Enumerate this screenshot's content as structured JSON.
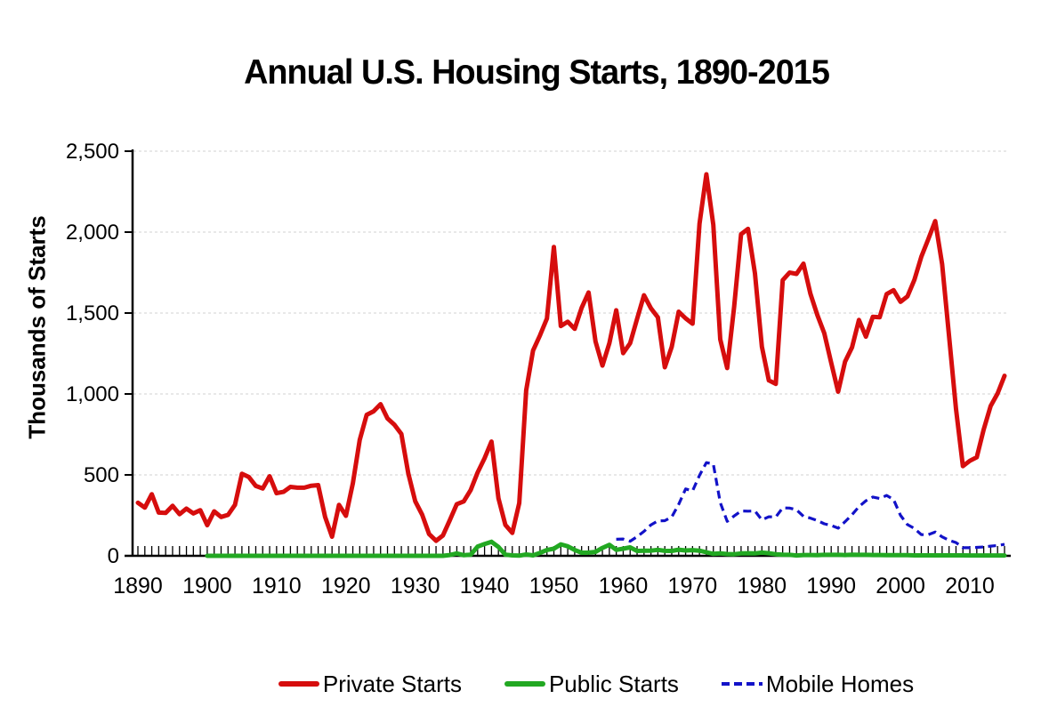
{
  "title": "Annual U.S. Housing Starts, 1890-2015",
  "y_axis": {
    "label": "Thousands of Starts",
    "ticks": [
      "0",
      "500",
      "1,000",
      "1,500",
      "2,000",
      "2,500"
    ],
    "min": 0,
    "max": 2500,
    "step": 500
  },
  "x_axis": {
    "tick_labels": [
      "1890",
      "1900",
      "1910",
      "1920",
      "1930",
      "1940",
      "1950",
      "1960",
      "1970",
      "1980",
      "1990",
      "2000",
      "2010"
    ],
    "min": 1890,
    "max": 2015,
    "minor_tick_step": 1,
    "label_step": 10
  },
  "legend": [
    {
      "label": "Private Starts",
      "color": "#D60D0D",
      "style": "solid"
    },
    {
      "label": "Public Starts",
      "color": "#22A822",
      "style": "solid"
    },
    {
      "label": "Mobile Homes",
      "color": "#1212C8",
      "style": "dashed"
    }
  ],
  "chart_data": {
    "type": "line",
    "title": "Annual U.S. Housing Starts, 1890-2015",
    "xlabel": "",
    "ylabel": "Thousands of Starts",
    "ylim": [
      0,
      2500
    ],
    "xlim": [
      1890,
      2015
    ],
    "grid": "horizontal-dashed",
    "legend_position": "bottom",
    "series": [
      {
        "name": "Private Starts",
        "color": "#D60D0D",
        "dash": "solid",
        "start_year": 1890,
        "values": [
          328,
          298,
          381,
          267,
          265,
          309,
          257,
          292,
          262,
          282,
          189,
          275,
          240,
          253,
          315,
          507,
          487,
          432,
          416,
          492,
          387,
          395,
          426,
          421,
          421,
          433,
          437,
          240,
          118,
          315,
          247,
          449,
          716,
          871,
          893,
          937,
          849,
          810,
          753,
          509,
          337,
          254,
          134,
          93,
          126,
          221,
          319,
          336,
          406,
          515,
          603,
          706,
          356,
          191,
          142,
          326,
          1023,
          1268,
          1362,
          1466,
          1908,
          1420,
          1446,
          1402,
          1532,
          1627,
          1325,
          1175,
          1314,
          1517,
          1252,
          1313,
          1463,
          1610,
          1529,
          1473,
          1165,
          1292,
          1508,
          1467,
          1434,
          2052,
          2357,
          2045,
          1338,
          1160,
          1538,
          1987,
          2020,
          1745,
          1292,
          1084,
          1062,
          1703,
          1750,
          1742,
          1805,
          1620,
          1488,
          1376,
          1193,
          1014,
          1200,
          1288,
          1457,
          1354,
          1477,
          1474,
          1617,
          1641,
          1569,
          1603,
          1705,
          1848,
          1956,
          2068,
          1801,
          1355,
          906,
          554,
          587,
          609,
          781,
          925,
          1003,
          1112
        ]
      },
      {
        "name": "Public Starts",
        "color": "#22A822",
        "dash": "solid",
        "start_year": 1900,
        "values": [
          0,
          0,
          0,
          0,
          0,
          0,
          0,
          0,
          0,
          0,
          0,
          0,
          0,
          0,
          0,
          0,
          0,
          0,
          0,
          0,
          0,
          0,
          0,
          0,
          0,
          0,
          0,
          0,
          0,
          0,
          0,
          0,
          0,
          0,
          0,
          5,
          15,
          4,
          7,
          57,
          73,
          87,
          55,
          7,
          3,
          1,
          8,
          3,
          18,
          36,
          44,
          71,
          59,
          36,
          19,
          20,
          24,
          49,
          68,
          37,
          44,
          52,
          30,
          32,
          32,
          37,
          31,
          30,
          38,
          33,
          35,
          32,
          22,
          12,
          15,
          11,
          10,
          15,
          16,
          15,
          20,
          16,
          10,
          7,
          6,
          2,
          5,
          5,
          4,
          6,
          6,
          6,
          5,
          7,
          6,
          6,
          5,
          5,
          4,
          4,
          4,
          4,
          3,
          3,
          3,
          3,
          3,
          3,
          3,
          3,
          2,
          2,
          2,
          2,
          2,
          2
        ]
      },
      {
        "name": "Mobile Homes",
        "color": "#1212C8",
        "dash": "dashed",
        "start_year": 1959,
        "values": [
          102,
          104,
          90,
          118,
          151,
          191,
          216,
          217,
          240,
          318,
          413,
          401,
          497,
          576,
          567,
          329,
          213,
          246,
          277,
          276,
          277,
          222,
          241,
          240,
          296,
          295,
          284,
          244,
          233,
          218,
          198,
          188,
          171,
          211,
          254,
          304,
          340,
          363,
          354,
          373,
          348,
          250,
          193,
          169,
          131,
          131,
          147,
          117,
          96,
          82,
          50,
          50,
          52,
          55,
          60,
          64,
          71
        ]
      }
    ]
  }
}
